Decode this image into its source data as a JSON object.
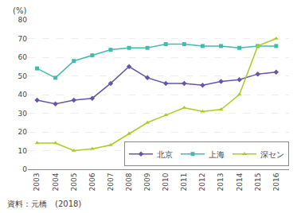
{
  "chart_data": {
    "type": "line",
    "ylabel": "(%)",
    "annotations": [
      "資料：元橋　(2018)"
    ],
    "x": [
      2003,
      2004,
      2005,
      2006,
      2007,
      2008,
      2009,
      2010,
      2011,
      2012,
      2013,
      2014,
      2015,
      2016
    ],
    "xlim": [
      2002.5,
      2016.7
    ],
    "xticks": [
      2003,
      2004,
      2005,
      2006,
      2007,
      2008,
      2009,
      2010,
      2011,
      2012,
      2013,
      2014,
      2015,
      2016
    ],
    "ylim": [
      0,
      80
    ],
    "yticks": [
      0,
      10,
      20,
      30,
      40,
      50,
      60,
      70,
      80
    ],
    "grid": "y",
    "legend": "lower right",
    "series": [
      {
        "name": "北京",
        "color": "#6655aa",
        "marker": "diamond",
        "values": [
          37,
          35,
          37,
          38,
          46,
          55,
          49,
          46,
          46,
          45,
          47,
          48,
          51,
          52
        ]
      },
      {
        "name": "上海",
        "color": "#44bbaa",
        "marker": "square",
        "values": [
          54,
          49,
          58,
          61,
          64,
          65,
          65,
          67,
          67,
          66,
          66,
          65,
          66,
          66
        ]
      },
      {
        "name": "深セン",
        "color": "#aacc22",
        "marker": "triangle-up",
        "values": [
          14,
          14,
          10,
          11,
          13,
          19,
          25,
          29,
          33,
          31,
          32,
          40,
          66,
          70
        ]
      }
    ]
  }
}
